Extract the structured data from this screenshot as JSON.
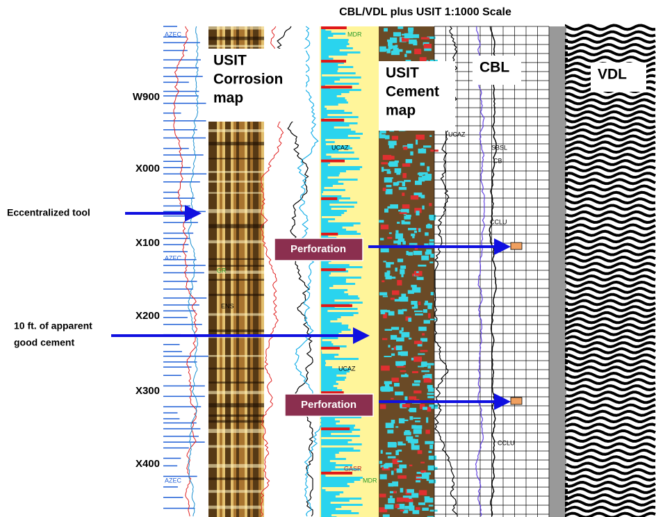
{
  "title": "CBL/VDL plus USIT 1:1000 Scale",
  "depth_labels": [
    "W900",
    "X000",
    "X100",
    "X200",
    "X300",
    "X400"
  ],
  "panel_labels": {
    "corrosion": [
      "USIT",
      "Corrosion",
      "map"
    ],
    "cement": [
      "USIT",
      "Cement",
      "map"
    ],
    "cbl": "CBL",
    "vdl": "VDL"
  },
  "annotations": {
    "eccentralized": "Eccentralized tool",
    "good_cement": [
      "10 ft. of apparent",
      "good cement"
    ],
    "perforations": [
      "Perforation",
      "Perforation"
    ]
  },
  "curve_mnemonics": [
    "MDR",
    "UCAZ",
    "UCAZ",
    "GASR",
    "MDR",
    "SBSL",
    "CB",
    "CCLU",
    "CCLU",
    "AZEC",
    "AZEC",
    "AZEC",
    "ENS",
    "GR",
    "UCAZ"
  ]
}
